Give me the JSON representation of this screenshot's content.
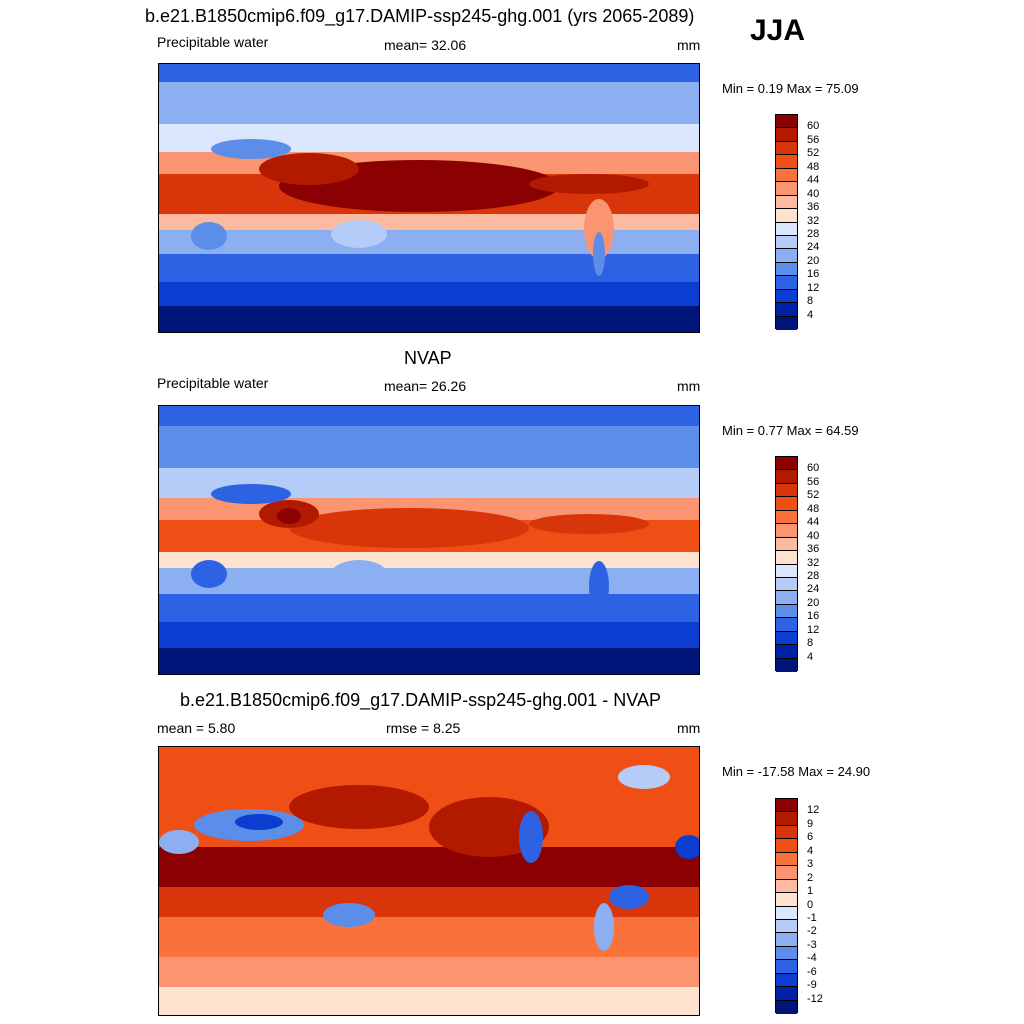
{
  "season": "JJA",
  "panels": [
    {
      "title": "b.e21.B1850cmip6.f09_g17.DAMIP-ssp245-ghg.001 (yrs 2065-2089)",
      "left_label": "Precipitable water",
      "center_label": "mean=  32.06",
      "right_label": "mm",
      "minmax": "Min =   0.19 Max =  75.09",
      "type": "absolute"
    },
    {
      "title": "NVAP",
      "left_label": "Precipitable water",
      "center_label": "mean=  26.26",
      "right_label": "mm",
      "minmax": "Min =   0.77 Max =  64.59",
      "type": "absolute_obs"
    },
    {
      "title": "b.e21.B1850cmip6.f09_g17.DAMIP-ssp245-ghg.001 - NVAP",
      "left_label": "mean =   5.80",
      "center_label": "rmse =   8.25",
      "right_label": "mm",
      "minmax": "Min = -17.58 Max =  24.90",
      "type": "difference"
    }
  ],
  "colorbars": {
    "absolute": {
      "labels": [
        "60",
        "56",
        "52",
        "48",
        "44",
        "40",
        "36",
        "32",
        "28",
        "24",
        "20",
        "16",
        "12",
        "8",
        "4"
      ],
      "colors": [
        "#8b0000",
        "#b21a00",
        "#d8350a",
        "#ef4e15",
        "#f9713b",
        "#fb9470",
        "#fcbaa0",
        "#fde2d0",
        "#d9e6fb",
        "#b4ccf7",
        "#8caff1",
        "#5b8de9",
        "#2d63e2",
        "#0a3dd0",
        "#0021a6",
        "#00157a"
      ]
    },
    "difference": {
      "labels": [
        "12",
        "9",
        "6",
        "4",
        "3",
        "2",
        "1",
        "0",
        "-1",
        "-2",
        "-3",
        "-4",
        "-6",
        "-9",
        "-12"
      ],
      "colors": [
        "#8b0000",
        "#b21a00",
        "#d8350a",
        "#ef4e15",
        "#f9713b",
        "#fb9470",
        "#fcbaa0",
        "#fde2d0",
        "#d9e6fb",
        "#b4ccf7",
        "#8caff1",
        "#5b8de9",
        "#2d63e2",
        "#0a3dd0",
        "#0021a6",
        "#00157a"
      ]
    }
  }
}
